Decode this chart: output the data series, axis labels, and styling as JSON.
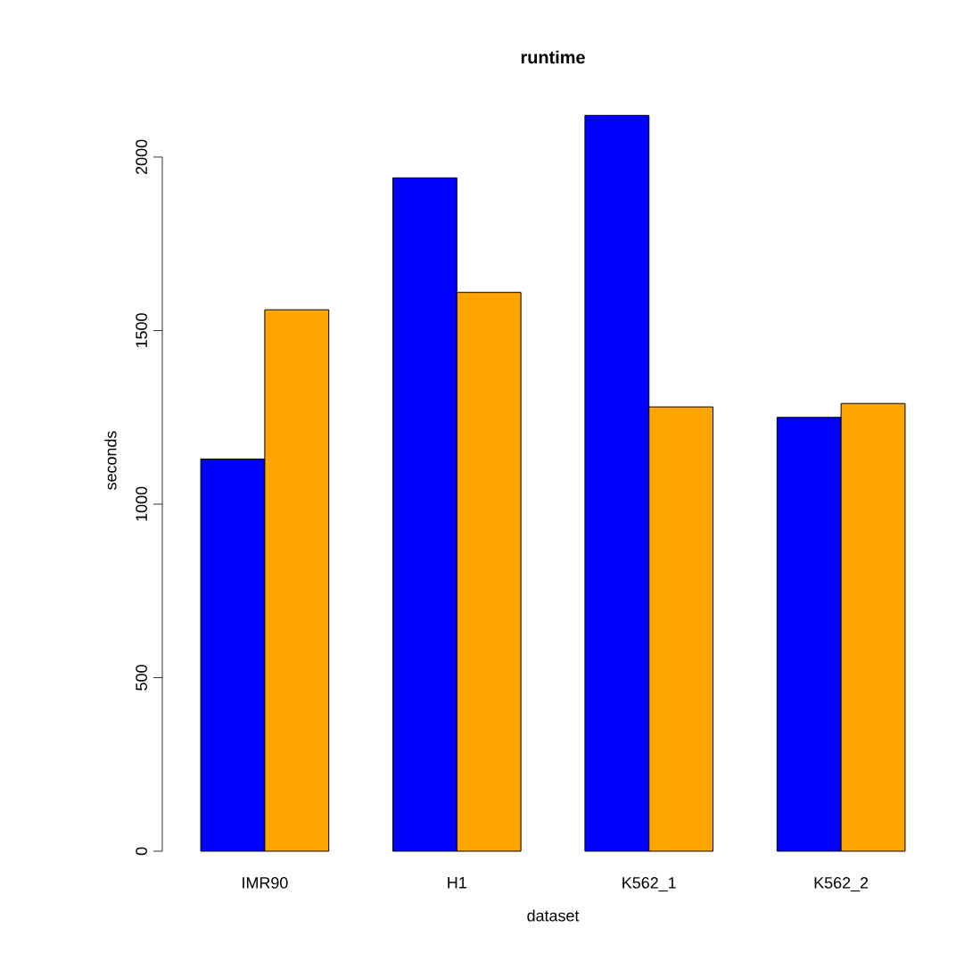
{
  "chart_data": {
    "type": "bar",
    "title": "runtime",
    "xlabel": "dataset",
    "ylabel": "seconds",
    "categories": [
      "IMR90",
      "H1",
      "K562_1",
      "K562_2"
    ],
    "series": [
      {
        "color": "#0000ff",
        "values": [
          1130,
          1940,
          2120,
          1250
        ]
      },
      {
        "color": "#ffa500",
        "values": [
          1560,
          1610,
          1280,
          1290
        ]
      }
    ],
    "ylim": [
      0,
      2130
    ],
    "yticks": [
      0,
      500,
      1000,
      1500,
      2000
    ]
  }
}
